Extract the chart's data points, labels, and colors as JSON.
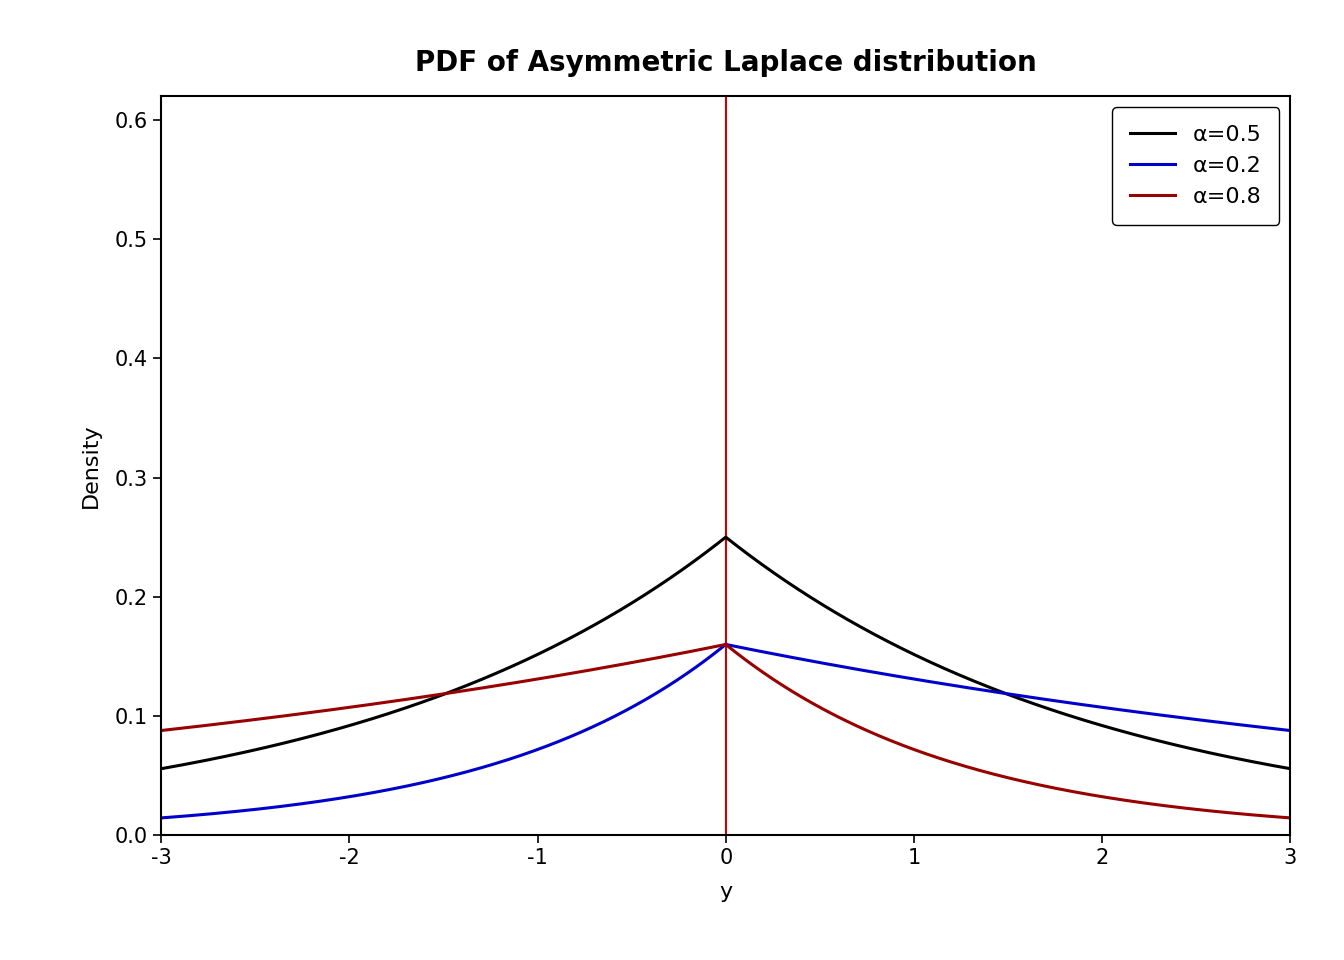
{
  "title": "PDF of Asymmetric Laplace distribution",
  "xlabel": "y",
  "ylabel": "Density",
  "xlim": [
    -3,
    3
  ],
  "ylim": [
    0.0,
    0.62
  ],
  "yticks": [
    0.0,
    0.1,
    0.2,
    0.3,
    0.4,
    0.5,
    0.6
  ],
  "xticks": [
    -3,
    -2,
    -1,
    0,
    1,
    2,
    3
  ],
  "vline_x": 0,
  "vline_color": "#cc0000",
  "background_color": "#ffffff",
  "series": [
    {
      "alpha": 0.5,
      "color": "#000000",
      "label": "α=0.5"
    },
    {
      "alpha": 0.2,
      "color": "#0000cc",
      "label": "α=0.2"
    },
    {
      "alpha": 0.8,
      "color": "#990000",
      "label": "α=0.8"
    }
  ],
  "title_fontsize": 20,
  "axis_label_fontsize": 16,
  "tick_fontsize": 15,
  "legend_fontsize": 16,
  "line_width": 2.2
}
